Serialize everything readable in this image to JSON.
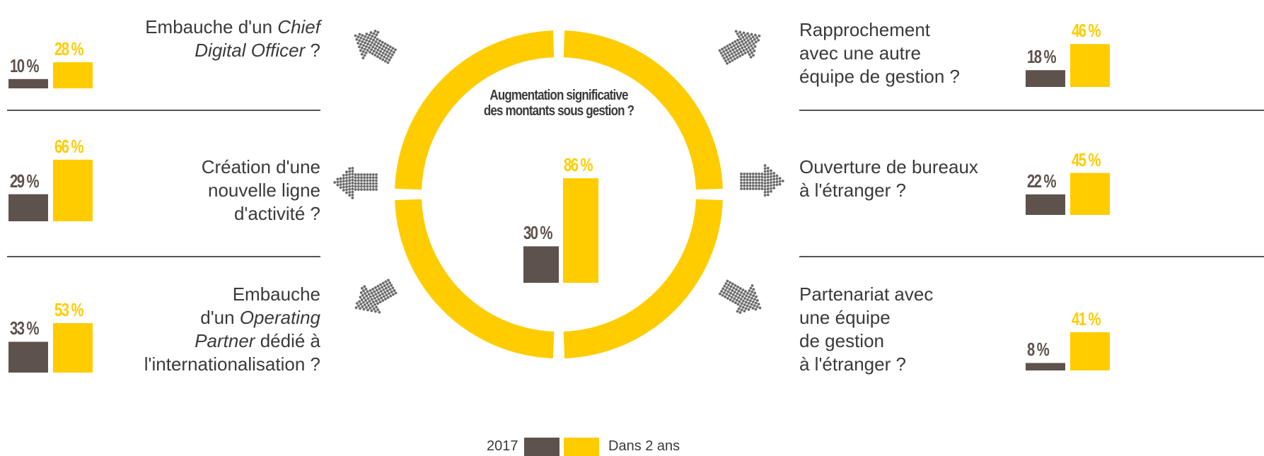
{
  "colors": {
    "year_2017": "#5e524c",
    "in_2_years": "#ffcc00",
    "text": "#3a3a3a",
    "arrow": "#6b6b6b"
  },
  "chart_data": {
    "type": "bar",
    "series": [
      {
        "name": "2017",
        "color": "#5e524c"
      },
      {
        "name": "Dans 2 ans",
        "color": "#ffcc00"
      }
    ],
    "items": [
      {
        "id": "cdo",
        "label_parts": [
          {
            "text": "Embauche d'un ",
            "italic": false
          },
          {
            "text": "Chief",
            "italic": true
          },
          {
            "br": true
          },
          {
            "text": "Digital Officer",
            "italic": true
          },
          {
            "text": " ?",
            "italic": false
          }
        ],
        "values": [
          10,
          28
        ]
      },
      {
        "id": "ligne",
        "label_parts": [
          {
            "text": "Création d'une",
            "italic": false
          },
          {
            "br": true
          },
          {
            "text": "nouvelle ligne",
            "italic": false
          },
          {
            "br": true
          },
          {
            "text": "d'activité ?",
            "italic": false
          }
        ],
        "values": [
          29,
          66
        ]
      },
      {
        "id": "op",
        "label_parts": [
          {
            "text": "Embauche",
            "italic": false
          },
          {
            "br": true
          },
          {
            "text": "d'un ",
            "italic": false
          },
          {
            "text": "Operating",
            "italic": true
          },
          {
            "br": true
          },
          {
            "text": "Partner",
            "italic": true
          },
          {
            "text": " dédié à",
            "italic": false
          },
          {
            "br": true
          },
          {
            "text": "l'internationalisation ?",
            "italic": false
          }
        ],
        "values": [
          33,
          53
        ]
      },
      {
        "id": "central",
        "title_lines": [
          "Augmentation significative",
          "des montants sous gestion ?"
        ],
        "values": [
          30,
          86
        ]
      },
      {
        "id": "rappro",
        "label_parts": [
          {
            "text": "Rapprochement",
            "italic": false
          },
          {
            "br": true
          },
          {
            "text": "avec une autre",
            "italic": false
          },
          {
            "br": true
          },
          {
            "text": "équipe de gestion ?",
            "italic": false
          }
        ],
        "values": [
          18,
          46
        ]
      },
      {
        "id": "bureaux",
        "label_parts": [
          {
            "text": "Ouverture de bureaux",
            "italic": false
          },
          {
            "br": true
          },
          {
            "text": "à l'étranger ?",
            "italic": false
          }
        ],
        "values": [
          22,
          45
        ]
      },
      {
        "id": "partenariat",
        "label_parts": [
          {
            "text": "Partenariat avec",
            "italic": false
          },
          {
            "br": true
          },
          {
            "text": "une équipe",
            "italic": false
          },
          {
            "br": true
          },
          {
            "text": "de gestion",
            "italic": false
          },
          {
            "br": true
          },
          {
            "text": "à l'étranger ?",
            "italic": false
          }
        ],
        "values": [
          8,
          41
        ]
      }
    ],
    "value_suffix": " %",
    "legend": {
      "placement": "bottom-center",
      "labels": [
        "2017",
        "Dans 2 ans"
      ]
    }
  }
}
